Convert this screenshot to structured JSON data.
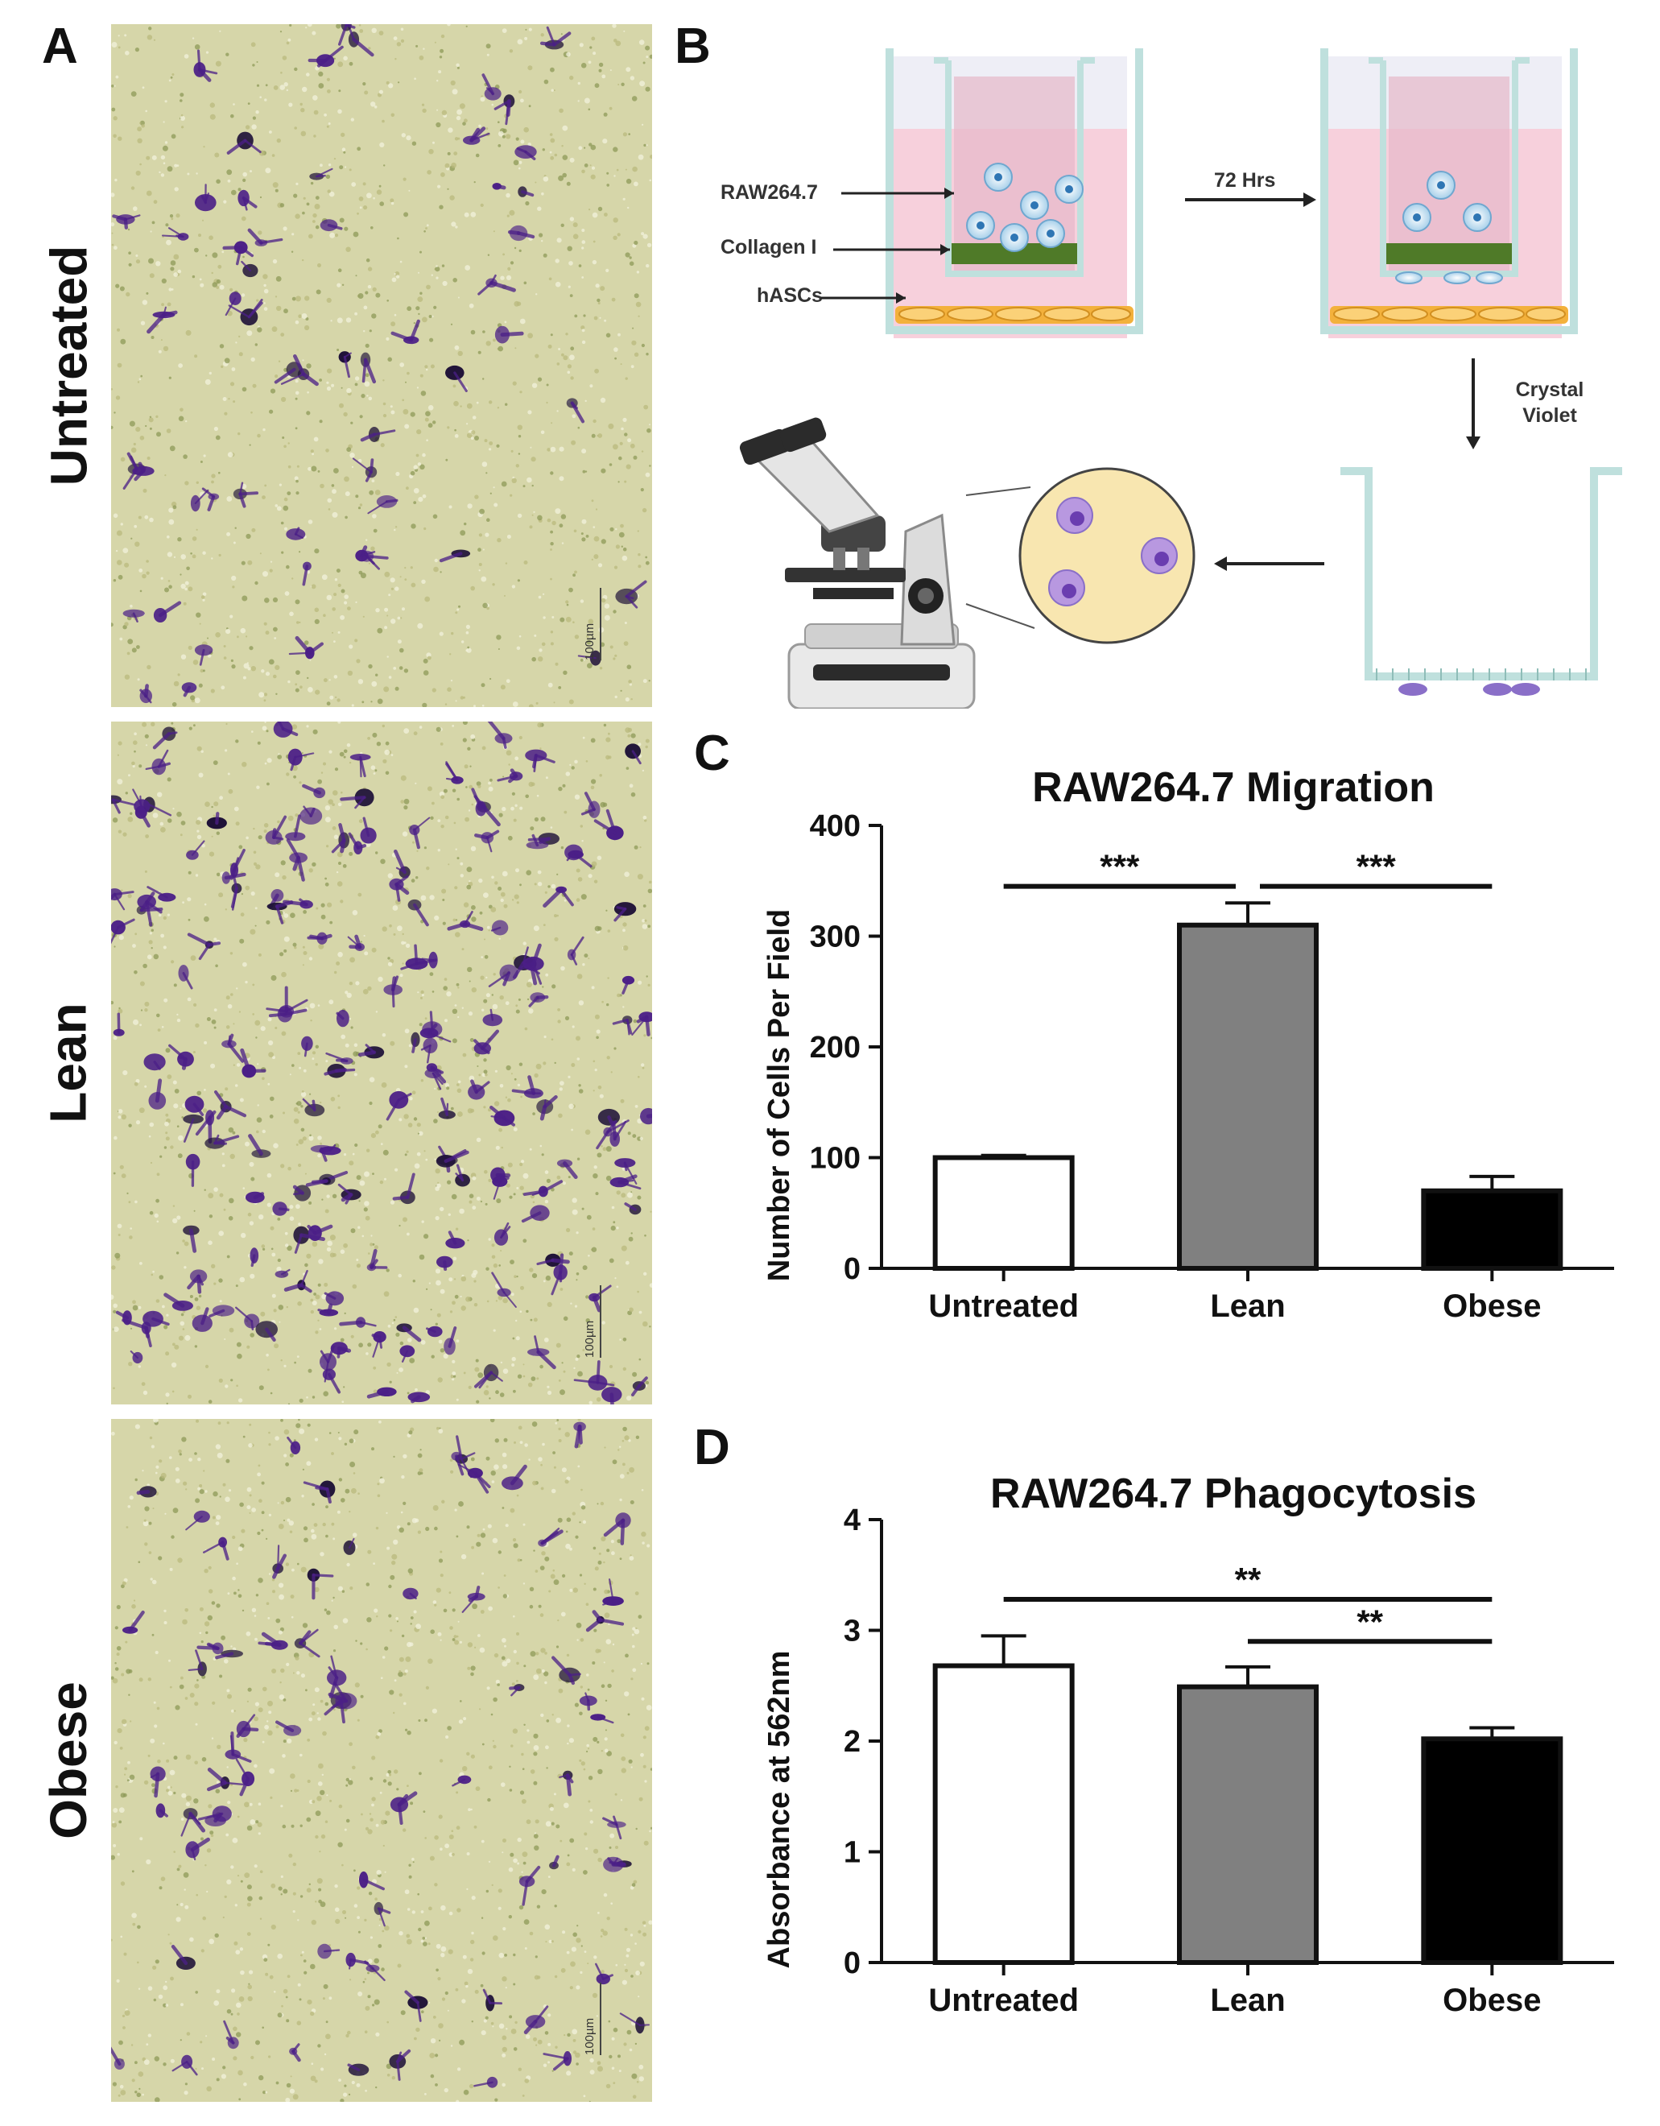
{
  "panel_labels": {
    "a": "A",
    "b": "B",
    "c": "C",
    "d": "D"
  },
  "micrographs": [
    {
      "label": "Untreated",
      "scale_text": "100µm"
    },
    {
      "label": "Lean",
      "scale_text": "100µm"
    },
    {
      "label": "Obese",
      "scale_text": "100µm"
    }
  ],
  "schematic": {
    "labels": {
      "raw": "RAW264.7",
      "collagen": "Collagen I",
      "hascs": "hASCs",
      "time": "72 Hrs",
      "stain_line1": "Crystal",
      "stain_line2": "Violet"
    },
    "icons": [
      "transwell-icon",
      "microscope-icon",
      "magnified-field-icon",
      "arrow-icon"
    ]
  },
  "colors": {
    "stain": "#4b1f87",
    "background_stain": "#d6d6a9",
    "untreated": "#ffffff",
    "lean": "#808080",
    "obese": "#000000",
    "media_pink": "#f7d0dc",
    "collagen_green": "#4f7a28",
    "hasc_orange": "#f3b13c"
  },
  "chart_data": [
    {
      "type": "bar",
      "title": "RAW264.7 Migration",
      "xlabel": "",
      "ylabel": "Number of Cells Per Field",
      "categories": [
        "Untreated",
        "Lean",
        "Obese"
      ],
      "values": [
        100,
        310,
        70
      ],
      "errors": [
        2,
        20,
        13
      ],
      "ylim": [
        0,
        400
      ],
      "yticks": [
        "0",
        "100",
        "200",
        "300",
        "400"
      ],
      "significance": [
        {
          "from": 0,
          "to": 1,
          "label": "***"
        },
        {
          "from": 1,
          "to": 2,
          "label": "***"
        }
      ]
    },
    {
      "type": "bar",
      "title": "RAW264.7 Phagocytosis",
      "xlabel": "",
      "ylabel": "Absorbance at 562nm",
      "categories": [
        "Untreated",
        "Lean",
        "Obese"
      ],
      "values": [
        2.68,
        2.49,
        2.02
      ],
      "errors": [
        0.27,
        0.18,
        0.1
      ],
      "ylim": [
        0,
        4
      ],
      "yticks": [
        "0",
        "1",
        "2",
        "3",
        "4"
      ],
      "significance": [
        {
          "from": 0,
          "to": 2,
          "label": "**"
        },
        {
          "from": 1,
          "to": 2,
          "label": "**"
        }
      ]
    }
  ]
}
